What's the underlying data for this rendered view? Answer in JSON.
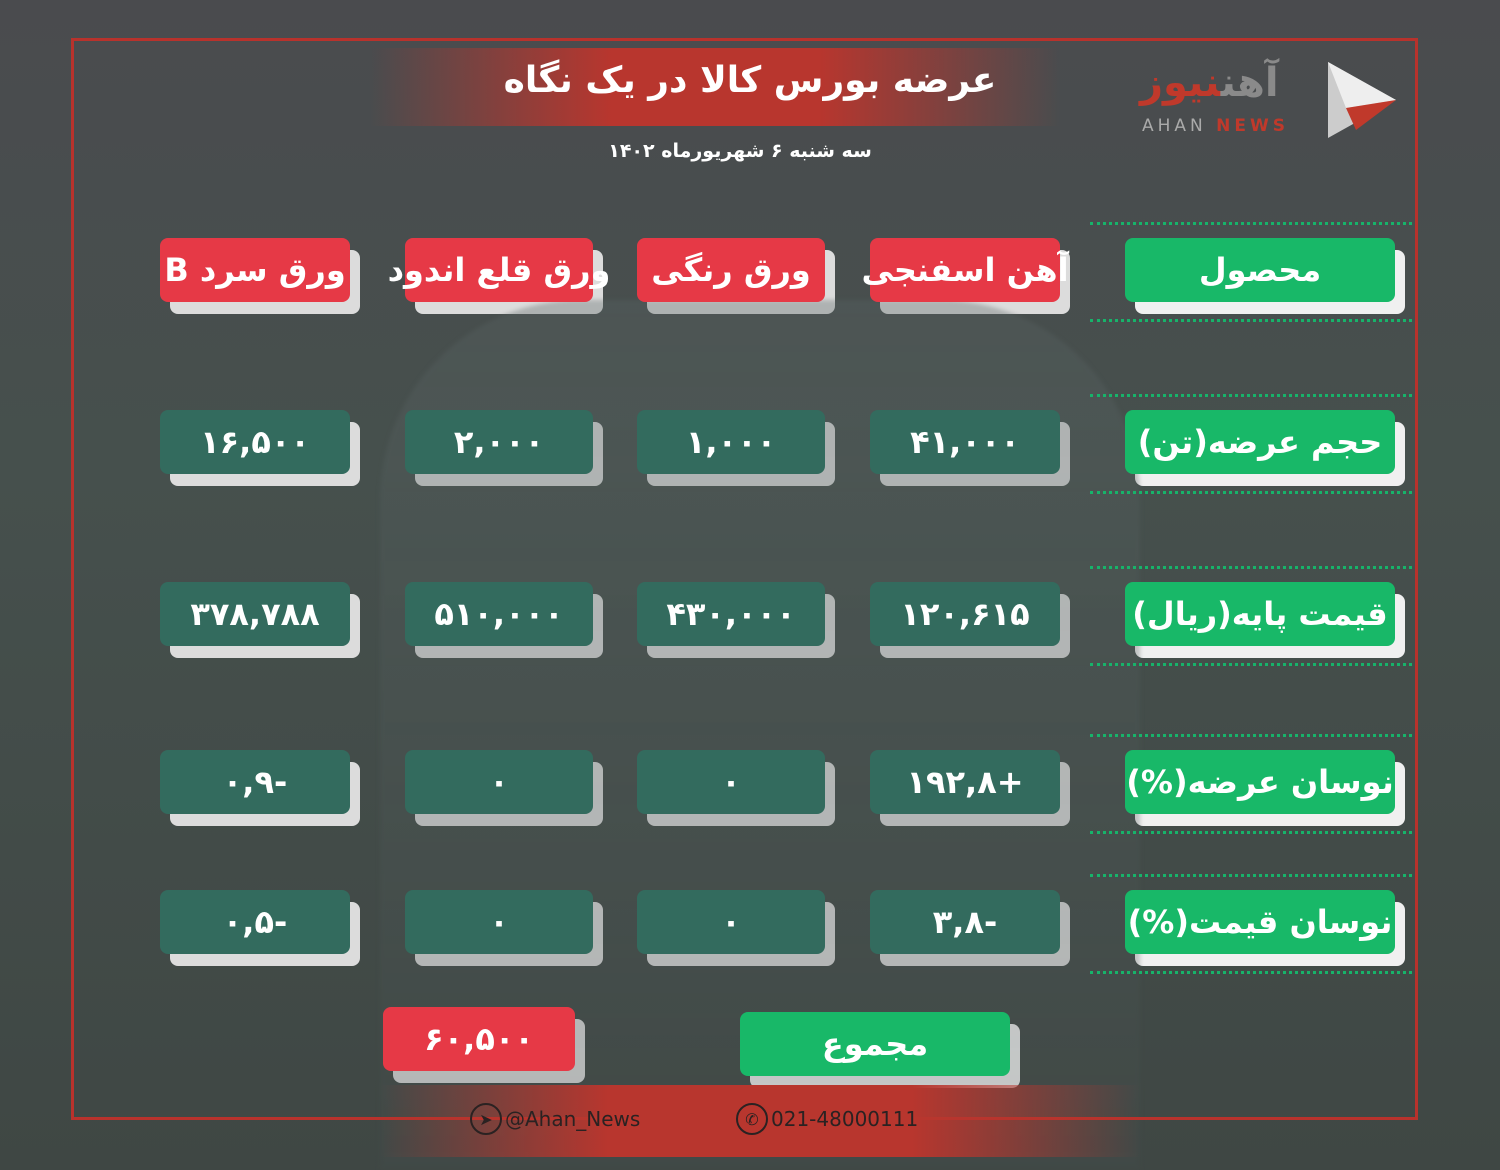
{
  "header": {
    "title": "عرضه بورس کالا در یک نگاه",
    "date": "سه شنبه ۶ شهریورماه ۱۴۰۲"
  },
  "logo": {
    "fa_part1": "آهن",
    "fa_part2": "نیوز",
    "en_part1": "AHAN",
    "en_part2": "NEWS"
  },
  "table": {
    "row_labels": [
      "محصول",
      "حجم عرضه(تن)",
      "قیمت پایه(ریال)",
      "نوسان عرضه(%)",
      "نوسان قیمت(%)"
    ],
    "products": [
      "آهن اسفنجی",
      "ورق رنگی",
      "ورق قلع اندود",
      "ورق سرد B"
    ],
    "rows": [
      [
        "۴۱,۰۰۰",
        "۱,۰۰۰",
        "۲,۰۰۰",
        "۱۶,۵۰۰"
      ],
      [
        "۱۲۰,۶۱۵",
        "۴۳۰,۰۰۰",
        "۵۱۰,۰۰۰",
        "۳۷۸,۷۸۸"
      ],
      [
        "+۱۹۲,۸",
        "۰",
        "۰",
        "-۰,۹"
      ],
      [
        "-۳,۸",
        "۰",
        "۰",
        "-۰,۵"
      ]
    ]
  },
  "total": {
    "label": "مجموع",
    "value": "۶۰,۵۰۰"
  },
  "footer": {
    "telegram": "@Ahan_News",
    "phone": "021-48000111"
  },
  "colors": {
    "red": "#e63946",
    "teal": "#336b5e",
    "green": "#18b868",
    "frame": "#b8322c"
  }
}
